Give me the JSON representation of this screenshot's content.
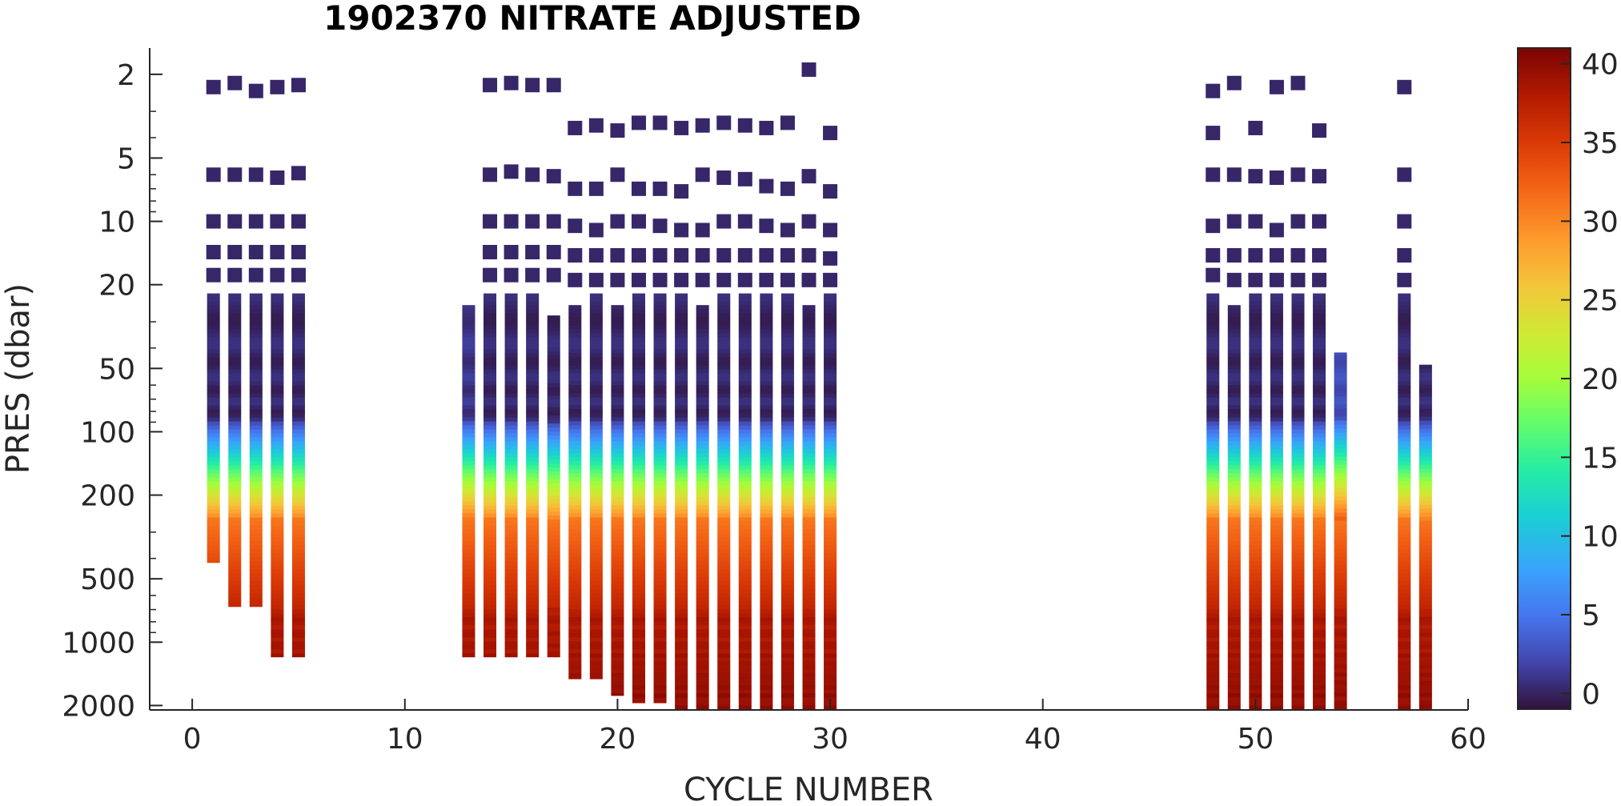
{
  "chart_data": {
    "type": "heatmap",
    "title": "1902370  NITRATE ADJUSTED",
    "xlabel": "CYCLE NUMBER",
    "ylabel": "PRES (dbar)",
    "xlim": [
      -2,
      60
    ],
    "ylim": [
      1.5,
      2100
    ],
    "yscale": "log",
    "xticks": [
      0,
      10,
      20,
      30,
      40,
      50,
      60
    ],
    "yticks": [
      2,
      5,
      10,
      20,
      50,
      100,
      200,
      500,
      1000,
      2000
    ],
    "colorbar": {
      "colormap": "turbo",
      "clim": [
        -1,
        41
      ],
      "ticks": [
        0,
        5,
        10,
        15,
        20,
        25,
        30,
        35,
        40
      ],
      "position": "right"
    },
    "grid": false,
    "legend": "none",
    "profiles": [
      {
        "cycle": 1,
        "surface": [
          2.3,
          6,
          10,
          14,
          18
        ],
        "top": 22,
        "bottom": 420,
        "nitrate_surface": 0.2
      },
      {
        "cycle": 2,
        "surface": [
          2.2,
          6,
          10,
          14,
          18
        ],
        "top": 22,
        "bottom": 680,
        "nitrate_surface": 0.2
      },
      {
        "cycle": 3,
        "surface": [
          2.4,
          6,
          10,
          14,
          18
        ],
        "top": 22,
        "bottom": 680,
        "nitrate_surface": 0.2
      },
      {
        "cycle": 4,
        "surface": [
          2.3,
          6.2,
          10,
          14,
          18
        ],
        "top": 22,
        "bottom": 1180,
        "nitrate_surface": 0.2
      },
      {
        "cycle": 5,
        "surface": [
          2.25,
          5.9,
          10,
          14,
          18
        ],
        "top": 22,
        "bottom": 1180,
        "nitrate_surface": 0.2
      },
      {
        "cycle": 13,
        "surface": [],
        "top": 25,
        "bottom": 1180,
        "nitrate_surface": 1.0
      },
      {
        "cycle": 14,
        "surface": [
          2.25,
          6,
          10,
          14,
          18
        ],
        "top": 22,
        "bottom": 1180,
        "nitrate_surface": 0.2
      },
      {
        "cycle": 15,
        "surface": [
          2.2,
          5.8,
          10,
          14,
          18
        ],
        "top": 22,
        "bottom": 1180,
        "nitrate_surface": 0.2
      },
      {
        "cycle": 16,
        "surface": [
          2.25,
          6,
          10,
          14,
          18
        ],
        "top": 22,
        "bottom": 1180,
        "nitrate_surface": 0.2
      },
      {
        "cycle": 17,
        "surface": [
          2.25,
          6.1,
          10,
          14,
          18
        ],
        "top": 28,
        "bottom": 1180,
        "nitrate_surface": 0.2
      },
      {
        "cycle": 18,
        "surface": [
          3.6,
          7,
          10.5,
          14.5,
          19
        ],
        "top": 25,
        "bottom": 1500,
        "nitrate_surface": 0.2
      },
      {
        "cycle": 19,
        "surface": [
          3.5,
          7,
          11,
          14.5,
          19
        ],
        "top": 22,
        "bottom": 1500,
        "nitrate_surface": 0.2
      },
      {
        "cycle": 20,
        "surface": [
          3.7,
          6,
          10,
          14.5,
          19
        ],
        "top": 25,
        "bottom": 1800,
        "nitrate_surface": 0.2
      },
      {
        "cycle": 21,
        "surface": [
          3.4,
          7,
          10,
          14.5,
          19
        ],
        "top": 22,
        "bottom": 1950,
        "nitrate_surface": 0.2
      },
      {
        "cycle": 22,
        "surface": [
          3.4,
          7,
          10.5,
          14.5,
          19
        ],
        "top": 22,
        "bottom": 1950,
        "nitrate_surface": 0.2
      },
      {
        "cycle": 23,
        "surface": [
          3.6,
          7.2,
          11,
          14.5,
          19
        ],
        "top": 22,
        "bottom": 2100,
        "nitrate_surface": 0.2
      },
      {
        "cycle": 24,
        "surface": [
          3.5,
          6,
          11,
          14.5,
          19
        ],
        "top": 25,
        "bottom": 2100,
        "nitrate_surface": 0.2
      },
      {
        "cycle": 25,
        "surface": [
          3.4,
          6.2,
          10,
          14.5,
          19
        ],
        "top": 22,
        "bottom": 2100,
        "nitrate_surface": 0.2
      },
      {
        "cycle": 26,
        "surface": [
          3.5,
          6.3,
          10,
          14.5,
          19
        ],
        "top": 22,
        "bottom": 2100,
        "nitrate_surface": 0.2
      },
      {
        "cycle": 27,
        "surface": [
          3.6,
          6.8,
          10.5,
          14.5,
          19
        ],
        "top": 22,
        "bottom": 2100,
        "nitrate_surface": 0.2
      },
      {
        "cycle": 28,
        "surface": [
          3.4,
          7,
          11,
          14.5,
          19
        ],
        "top": 22,
        "bottom": 2100,
        "nitrate_surface": 0.2
      },
      {
        "cycle": 29,
        "surface": [
          1.9,
          6.1,
          10,
          14.5,
          19
        ],
        "top": 25,
        "bottom": 2100,
        "nitrate_surface": 0.2
      },
      {
        "cycle": 30,
        "surface": [
          3.8,
          7.2,
          11,
          15,
          19
        ],
        "top": 22,
        "bottom": 2100,
        "nitrate_surface": 0.2
      },
      {
        "cycle": 48,
        "surface": [
          2.4,
          3.8,
          6,
          10.5,
          14.5,
          18
        ],
        "top": 22,
        "bottom": 2100,
        "nitrate_surface": 0.2
      },
      {
        "cycle": 49,
        "surface": [
          2.2,
          6,
          10,
          14.5,
          19
        ],
        "top": 25,
        "bottom": 2100,
        "nitrate_surface": 0.2
      },
      {
        "cycle": 50,
        "surface": [
          3.6,
          6.1,
          10,
          14.5,
          19
        ],
        "top": 22,
        "bottom": 2100,
        "nitrate_surface": 0.2
      },
      {
        "cycle": 51,
        "surface": [
          2.3,
          6.2,
          11,
          14.5,
          19
        ],
        "top": 22,
        "bottom": 2100,
        "nitrate_surface": 0.2
      },
      {
        "cycle": 52,
        "surface": [
          2.2,
          6,
          10,
          14.5,
          19
        ],
        "top": 22,
        "bottom": 2100,
        "nitrate_surface": 0.2
      },
      {
        "cycle": 53,
        "surface": [
          3.7,
          6.1,
          10,
          14.5,
          19
        ],
        "top": 22,
        "bottom": 2100,
        "nitrate_surface": 0.2
      },
      {
        "cycle": 54,
        "surface": [],
        "top": 42,
        "bottom": 2100,
        "nitrate_surface": 2.5
      },
      {
        "cycle": 57,
        "surface": [
          2.3,
          6,
          10,
          14.5,
          19
        ],
        "top": 22,
        "bottom": 2100,
        "nitrate_surface": 0.2
      },
      {
        "cycle": 58,
        "surface": [],
        "top": 48,
        "bottom": 2100,
        "nitrate_surface": 0.3
      }
    ]
  }
}
